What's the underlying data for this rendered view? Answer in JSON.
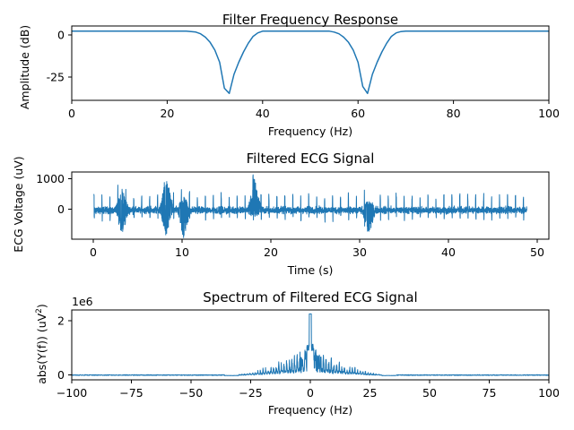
{
  "chart_data": [
    {
      "type": "line",
      "title": "Filter Frequency Response",
      "xlabel": "Frequency (Hz)",
      "ylabel": "Amplitude (dB)",
      "xlim": [
        0,
        100
      ],
      "ylim": [
        -40,
        3
      ],
      "xticks": [
        "0",
        "20",
        "40",
        "60",
        "80",
        "100"
      ],
      "yticks": [
        "0",
        "-25"
      ],
      "color": "#1f77b4",
      "series": [
        {
          "x": [
            0,
            20,
            24,
            26,
            27,
            28,
            29,
            30,
            31,
            32,
            33,
            34,
            35,
            36,
            37,
            38,
            39,
            40,
            50,
            54,
            55,
            56,
            57,
            58,
            59,
            60,
            61,
            62,
            63,
            64,
            65,
            66,
            67,
            68,
            69,
            70,
            100
          ],
          "y": [
            0,
            0,
            0,
            -0.5,
            -1.5,
            -3.5,
            -6.5,
            -11,
            -18,
            -33,
            -36,
            -25,
            -18,
            -12,
            -7,
            -3,
            -1,
            0,
            0,
            0,
            -0.5,
            -1.5,
            -3.5,
            -6.5,
            -11,
            -18,
            -32,
            -36,
            -25,
            -18,
            -12,
            -7,
            -3,
            -1,
            -0.2,
            0,
            0
          ]
        }
      ]
    },
    {
      "type": "line",
      "title": "Filtered ECG Signal",
      "xlabel": "Time (s)",
      "ylabel": "ECG Voltage (uV)",
      "xlim": [
        -2.5,
        51.5
      ],
      "ylim": [
        -950,
        1250
      ],
      "xticks": [
        "0",
        "10",
        "20",
        "30",
        "40",
        "50"
      ],
      "yticks": [
        "0",
        "1000"
      ],
      "color": "#1f77b4",
      "signal": {
        "t_start": 0,
        "t_end": 49,
        "baseline_noise_uV": 180,
        "beat_interval_s": 0.9,
        "beat_peak_uV": 520,
        "beat_trough_uV": -320,
        "bursts": [
          {
            "t": 3.2,
            "min": -820,
            "max": 700
          },
          {
            "t": 8.2,
            "min": -820,
            "max": 1150
          },
          {
            "t": 10.2,
            "min": -900,
            "max": 500
          },
          {
            "t": 18.2,
            "min": -200,
            "max": 1100
          },
          {
            "t": 31.1,
            "min": -750,
            "max": 350
          }
        ]
      }
    },
    {
      "type": "line",
      "title": "Spectrum of Filtered ECG Signal",
      "xlabel": "Frequency (Hz)",
      "ylabel": "abs(Y(f)) (uV²)",
      "offset_text": "1e6",
      "xlim": [
        -100,
        100
      ],
      "ylim": [
        -0.15,
        2.5
      ],
      "xticks": [
        "−100",
        "−75",
        "−50",
        "−25",
        "0",
        "25",
        "50",
        "75",
        "100"
      ],
      "yticks": [
        "0",
        "2"
      ],
      "color": "#1f77b4",
      "spectrum": {
        "peak_at_zero_e6": 2.35,
        "secondary_peaks_e6": [
          1.2,
          1.0,
          0.8,
          0.6
        ],
        "harmonic_spacing_hz": 1.1,
        "band_edge_hz": 32,
        "floor_e6": 0.03,
        "notch_hz": [
          33,
          62
        ]
      }
    }
  ]
}
